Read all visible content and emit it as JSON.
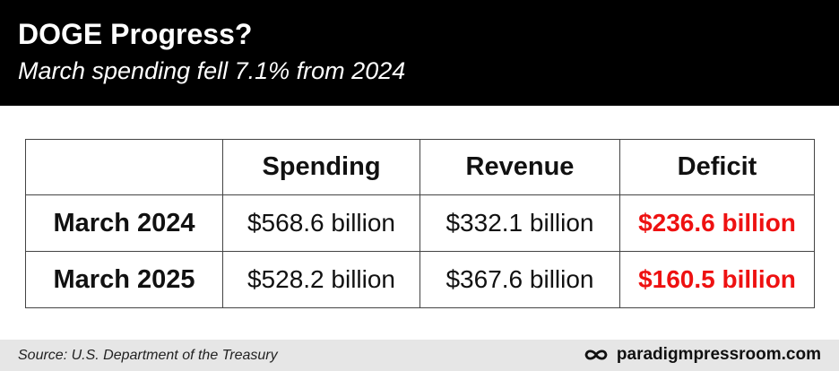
{
  "header": {
    "title": "DOGE Progress?",
    "subtitle": "March spending fell 7.1% from 2024"
  },
  "colors": {
    "header_bg": "#000000",
    "deficit_text": "#ee1111",
    "footer_bg": "#e6e6e6"
  },
  "chart_data": {
    "type": "table",
    "title": "DOGE Progress?",
    "subtitle": "March spending fell 7.1% from 2024",
    "columns": [
      "Spending",
      "Revenue",
      "Deficit"
    ],
    "rows": [
      {
        "label": "March 2024",
        "cells": [
          "$568.6 billion",
          "$332.1 billion",
          "$236.6 billion"
        ]
      },
      {
        "label": "March 2025",
        "cells": [
          "$528.2 billion",
          "$367.6 billion",
          "$160.5 billion"
        ]
      }
    ],
    "values": {
      "unit": "billion USD",
      "series": [
        {
          "name": "March 2024",
          "values": [
            568.6,
            332.1,
            236.6
          ]
        },
        {
          "name": "March 2025",
          "values": [
            528.2,
            367.6,
            160.5
          ]
        }
      ]
    },
    "highlight_column": "Deficit"
  },
  "footer": {
    "source": "Source: U.S. Department of the Treasury",
    "brand_icon": "infinity-icon",
    "brand": "paradigmpressroom.com"
  }
}
